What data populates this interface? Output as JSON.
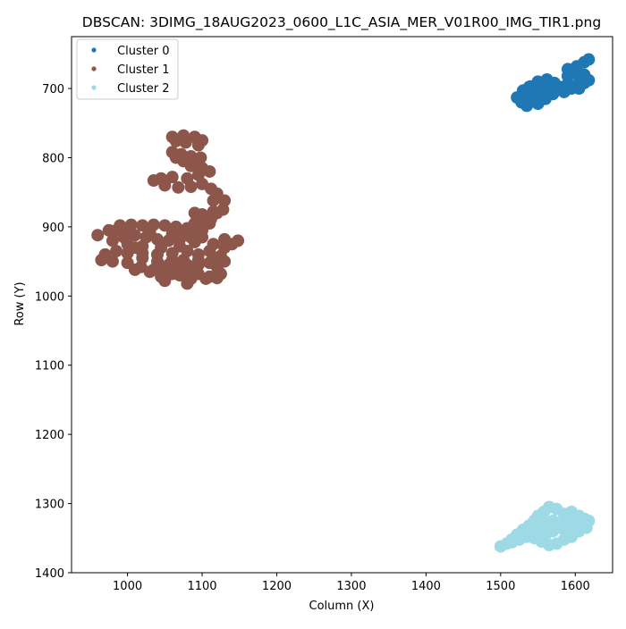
{
  "chart_data": {
    "type": "scatter",
    "title": "DBSCAN: 3DIMG_18AUG2023_0600_L1C_ASIA_MER_V01R00_IMG_TIR1.png",
    "xlabel": "Column (X)",
    "ylabel": "Row (Y)",
    "xlim": [
      925,
      1650
    ],
    "ylim": [
      1400,
      625
    ],
    "y_inverted": true,
    "x_ticks": [
      1000,
      1100,
      1200,
      1300,
      1400,
      1500,
      1600
    ],
    "y_ticks": [
      700,
      800,
      900,
      1000,
      1100,
      1200,
      1300,
      1400
    ],
    "grid": false,
    "legend_location": "upper-left",
    "series": [
      {
        "name": "Cluster 0",
        "color": "#1f77b4",
        "points": [
          [
            1535,
            725
          ],
          [
            1528,
            720
          ],
          [
            1522,
            713
          ],
          [
            1530,
            703
          ],
          [
            1540,
            697
          ],
          [
            1550,
            690
          ],
          [
            1562,
            687
          ],
          [
            1572,
            692
          ],
          [
            1580,
            698
          ],
          [
            1590,
            693
          ],
          [
            1602,
            695
          ],
          [
            1612,
            692
          ],
          [
            1618,
            688
          ],
          [
            1612,
            680
          ],
          [
            1600,
            678
          ],
          [
            1590,
            672
          ],
          [
            1602,
            668
          ],
          [
            1612,
            662
          ],
          [
            1618,
            658
          ],
          [
            1608,
            685
          ],
          [
            1595,
            700
          ],
          [
            1585,
            705
          ],
          [
            1570,
            708
          ],
          [
            1560,
            715
          ],
          [
            1550,
            722
          ],
          [
            1542,
            718
          ],
          [
            1548,
            705
          ],
          [
            1558,
            700
          ],
          [
            1575,
            697
          ],
          [
            1565,
            704
          ],
          [
            1532,
            712
          ],
          [
            1545,
            712
          ],
          [
            1590,
            682
          ],
          [
            1605,
            700
          ],
          [
            1538,
            698
          ]
        ]
      },
      {
        "name": "Cluster 1",
        "color": "#8c564b",
        "points": [
          [
            1060,
            770
          ],
          [
            1075,
            768
          ],
          [
            1090,
            770
          ],
          [
            1100,
            775
          ],
          [
            1095,
            782
          ],
          [
            1078,
            778
          ],
          [
            1065,
            776
          ],
          [
            1060,
            792
          ],
          [
            1072,
            795
          ],
          [
            1085,
            798
          ],
          [
            1098,
            800
          ],
          [
            1092,
            807
          ],
          [
            1075,
            805
          ],
          [
            1065,
            800
          ],
          [
            1085,
            812
          ],
          [
            1100,
            815
          ],
          [
            1110,
            820
          ],
          [
            1095,
            825
          ],
          [
            1080,
            830
          ],
          [
            1060,
            828
          ],
          [
            1045,
            830
          ],
          [
            1035,
            833
          ],
          [
            1050,
            840
          ],
          [
            1068,
            843
          ],
          [
            1085,
            842
          ],
          [
            1100,
            838
          ],
          [
            1112,
            845
          ],
          [
            1120,
            852
          ],
          [
            1115,
            862
          ],
          [
            1130,
            862
          ],
          [
            1128,
            875
          ],
          [
            1115,
            878
          ],
          [
            1100,
            882
          ],
          [
            1090,
            880
          ],
          [
            1098,
            890
          ],
          [
            1112,
            888
          ],
          [
            1120,
            880
          ],
          [
            1110,
            895
          ],
          [
            1095,
            898
          ],
          [
            960,
            912
          ],
          [
            975,
            905
          ],
          [
            990,
            898
          ],
          [
            1005,
            897
          ],
          [
            1020,
            898
          ],
          [
            1035,
            897
          ],
          [
            1050,
            898
          ],
          [
            1065,
            900
          ],
          [
            1080,
            902
          ],
          [
            1090,
            905
          ],
          [
            1100,
            905
          ],
          [
            1085,
            915
          ],
          [
            1070,
            918
          ],
          [
            1055,
            920
          ],
          [
            1040,
            918
          ],
          [
            1025,
            915
          ],
          [
            1010,
            912
          ],
          [
            995,
            915
          ],
          [
            980,
            920
          ],
          [
            1000,
            925
          ],
          [
            1020,
            928
          ],
          [
            1045,
            930
          ],
          [
            1070,
            928
          ],
          [
            1090,
            922
          ],
          [
            1100,
            915
          ],
          [
            1115,
            925
          ],
          [
            1130,
            930
          ],
          [
            1140,
            925
          ],
          [
            1148,
            920
          ],
          [
            1130,
            918
          ],
          [
            1125,
            942
          ],
          [
            1110,
            935
          ],
          [
            1095,
            940
          ],
          [
            1080,
            935
          ],
          [
            1060,
            938
          ],
          [
            1040,
            940
          ],
          [
            1020,
            938
          ],
          [
            1000,
            938
          ],
          [
            985,
            935
          ],
          [
            970,
            940
          ],
          [
            965,
            948
          ],
          [
            980,
            950
          ],
          [
            1000,
            952
          ],
          [
            1018,
            958
          ],
          [
            1035,
            962
          ],
          [
            1050,
            960
          ],
          [
            1065,
            958
          ],
          [
            1080,
            955
          ],
          [
            1095,
            955
          ],
          [
            1110,
            952
          ],
          [
            1120,
            958
          ],
          [
            1125,
            968
          ],
          [
            1110,
            972
          ],
          [
            1095,
            968
          ],
          [
            1080,
            965
          ],
          [
            1060,
            968
          ],
          [
            1045,
            972
          ],
          [
            1050,
            978
          ],
          [
            1080,
            982
          ],
          [
            1085,
            975
          ],
          [
            1105,
            975
          ],
          [
            1120,
            974
          ],
          [
            1070,
            970
          ],
          [
            1030,
            965
          ],
          [
            1010,
            962
          ],
          [
            1040,
            950
          ],
          [
            1060,
            948
          ],
          [
            1075,
            948
          ],
          [
            1095,
            948
          ],
          [
            1115,
            945
          ],
          [
            1130,
            950
          ],
          [
            1000,
            905
          ],
          [
            1030,
            908
          ],
          [
            1060,
            910
          ],
          [
            1075,
            912
          ],
          [
            1090,
            895
          ],
          [
            1020,
            945
          ],
          [
            1055,
            955
          ],
          [
            1090,
            960
          ],
          [
            1010,
            930
          ],
          [
            985,
            905
          ]
        ]
      },
      {
        "name": "Cluster 2",
        "color": "#9edae5",
        "points": [
          [
            1500,
            1362
          ],
          [
            1508,
            1358
          ],
          [
            1515,
            1352
          ],
          [
            1522,
            1345
          ],
          [
            1530,
            1338
          ],
          [
            1538,
            1332
          ],
          [
            1545,
            1325
          ],
          [
            1550,
            1318
          ],
          [
            1558,
            1312
          ],
          [
            1565,
            1305
          ],
          [
            1575,
            1308
          ],
          [
            1585,
            1315
          ],
          [
            1595,
            1312
          ],
          [
            1605,
            1318
          ],
          [
            1612,
            1322
          ],
          [
            1618,
            1325
          ],
          [
            1615,
            1335
          ],
          [
            1605,
            1340
          ],
          [
            1595,
            1348
          ],
          [
            1585,
            1352
          ],
          [
            1575,
            1358
          ],
          [
            1565,
            1360
          ],
          [
            1555,
            1355
          ],
          [
            1545,
            1350
          ],
          [
            1535,
            1348
          ],
          [
            1525,
            1352
          ],
          [
            1515,
            1356
          ],
          [
            1540,
            1340
          ],
          [
            1550,
            1335
          ],
          [
            1560,
            1330
          ],
          [
            1570,
            1325
          ],
          [
            1580,
            1328
          ],
          [
            1590,
            1322
          ],
          [
            1600,
            1328
          ],
          [
            1610,
            1330
          ],
          [
            1570,
            1340
          ],
          [
            1560,
            1345
          ],
          [
            1585,
            1338
          ],
          [
            1555,
            1320
          ],
          [
            1595,
            1332
          ]
        ]
      }
    ]
  }
}
